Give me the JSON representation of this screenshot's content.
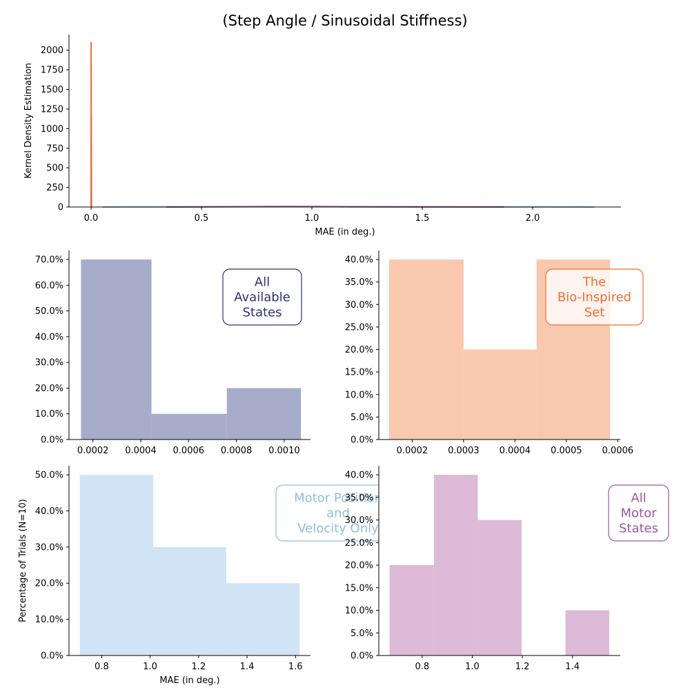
{
  "figure": {
    "title": "(Step Angle / Sinusoidal Stiffness)"
  },
  "chart_data": [
    {
      "id": "kde",
      "type": "line",
      "title": "",
      "xlabel": "MAE (in deg.)",
      "ylabel": "Kernel Density Estimation",
      "xlim": [
        -0.1,
        2.4
      ],
      "ylim": [
        0,
        2200
      ],
      "xticks": [
        0.0,
        0.5,
        1.0,
        1.5,
        2.0
      ],
      "xtick_labels": [
        "0.0",
        "0.5",
        "1.0",
        "1.5",
        "2.0"
      ],
      "yticks": [
        0,
        250,
        500,
        750,
        1000,
        1250,
        1500,
        1750,
        2000
      ],
      "ytick_labels": [
        "0",
        "250",
        "500",
        "750",
        "1000",
        "1250",
        "1500",
        "1750",
        "2000"
      ],
      "series": [
        {
          "color": "#2c3172",
          "x": [
            0.0,
            0.00015,
            0.0003,
            0.0005,
            0.0007,
            0.0009,
            0.0011,
            0.0013
          ],
          "y": [
            0,
            300,
            900,
            1200,
            700,
            500,
            300,
            0
          ]
        },
        {
          "color": "#f26c2f",
          "x": [
            0.0001,
            0.0002,
            0.0003,
            0.0004,
            0.0005,
            0.0006,
            0.0007
          ],
          "y": [
            0,
            1500,
            2100,
            1800,
            1700,
            900,
            0
          ]
        },
        {
          "color": "#8cbde0",
          "x": [
            0.05,
            0.4,
            0.8,
            1.1,
            1.4,
            1.8,
            2.28
          ],
          "y": [
            0,
            2,
            5,
            4,
            3,
            1,
            0
          ]
        },
        {
          "color": "#a0559d",
          "x": [
            0.34,
            0.6,
            0.9,
            1.05,
            1.3,
            1.6,
            1.87
          ],
          "y": [
            0,
            3,
            7,
            5,
            2,
            1,
            0
          ]
        }
      ]
    },
    {
      "id": "h1",
      "type": "bar",
      "label_box": "All\nAvailable\nStates",
      "color": "#2c3172",
      "fill": "#a8accb",
      "edges": [
        0.00015,
        0.000445,
        0.00076,
        0.00107
      ],
      "values": [
        70,
        10,
        20
      ],
      "xlim": [
        0.0001,
        0.00111
      ],
      "ylim": [
        0,
        73.5
      ],
      "xticks": [
        0.0002,
        0.0004,
        0.0006,
        0.0008,
        0.001
      ],
      "xtick_labels": [
        "0.0002",
        "0.0004",
        "0.0006",
        "0.0008",
        "0.0010"
      ],
      "yticks": [
        0,
        10,
        20,
        30,
        40,
        50,
        60,
        70
      ],
      "ytick_labels": [
        "0.0%",
        "10.0%",
        "20.0%",
        "30.0%",
        "40.0%",
        "50.0%",
        "60.0%",
        "70.0%"
      ]
    },
    {
      "id": "h2",
      "type": "bar",
      "label_box": "The\nBio-Inspired\nSet",
      "color": "#f26c2f",
      "fill": "#f9c8ae",
      "edges": [
        0.000155,
        0.0003,
        0.000442,
        0.000585
      ],
      "values": [
        40,
        20,
        40
      ],
      "xlim": [
        0.000135,
        0.000605
      ],
      "ylim": [
        0,
        42
      ],
      "xticks": [
        0.0002,
        0.0003,
        0.0004,
        0.0005,
        0.0006
      ],
      "xtick_labels": [
        "0.0002",
        "0.0003",
        "0.0004",
        "0.0005",
        "0.0006"
      ],
      "yticks": [
        0,
        5,
        10,
        15,
        20,
        25,
        30,
        35,
        40
      ],
      "ytick_labels": [
        "0.0%",
        "5.0%",
        "10.0%",
        "15.0%",
        "20.0%",
        "25.0%",
        "30.0%",
        "35.0%",
        "40.0%"
      ]
    },
    {
      "id": "h3",
      "type": "bar",
      "label_box": "Motor Position\nand\nVelocity Only",
      "color": "#8cbde0",
      "fill": "#d1e4f5",
      "edges": [
        0.71,
        1.013,
        1.314,
        1.617
      ],
      "values": [
        50,
        30,
        20
      ],
      "xlim": [
        0.665,
        1.662
      ],
      "ylim": [
        0,
        52.5
      ],
      "xlabel": "MAE (in deg.)",
      "ylabel": "Percentage of Trials (N=10)",
      "xticks": [
        0.8,
        1.0,
        1.2,
        1.4,
        1.6
      ],
      "xtick_labels": [
        "0.8",
        "1.0",
        "1.2",
        "1.4",
        "1.6"
      ],
      "yticks": [
        0,
        10,
        20,
        30,
        40,
        50
      ],
      "ytick_labels": [
        "0.0%",
        "10.0%",
        "20.0%",
        "30.0%",
        "40.0%",
        "50.0%"
      ]
    },
    {
      "id": "h4",
      "type": "bar",
      "label_box": "All\nMotor\nStates",
      "color": "#a0559d",
      "fill": "#dcbad8",
      "edges": [
        0.67,
        0.847,
        1.022,
        1.197,
        1.372,
        1.547
      ],
      "values": [
        20,
        40,
        30,
        0,
        10
      ],
      "xlim": [
        0.627,
        1.591
      ],
      "ylim": [
        0,
        42
      ],
      "xticks": [
        0.8,
        1.0,
        1.2,
        1.4
      ],
      "xtick_labels": [
        "0.8",
        "1.0",
        "1.2",
        "1.4"
      ],
      "yticks": [
        0,
        5,
        10,
        15,
        20,
        25,
        30,
        35,
        40
      ],
      "ytick_labels": [
        "0.0%",
        "5.0%",
        "10.0%",
        "15.0%",
        "20.0%",
        "25.0%",
        "30.0%",
        "35.0%",
        "40.0%"
      ]
    }
  ]
}
